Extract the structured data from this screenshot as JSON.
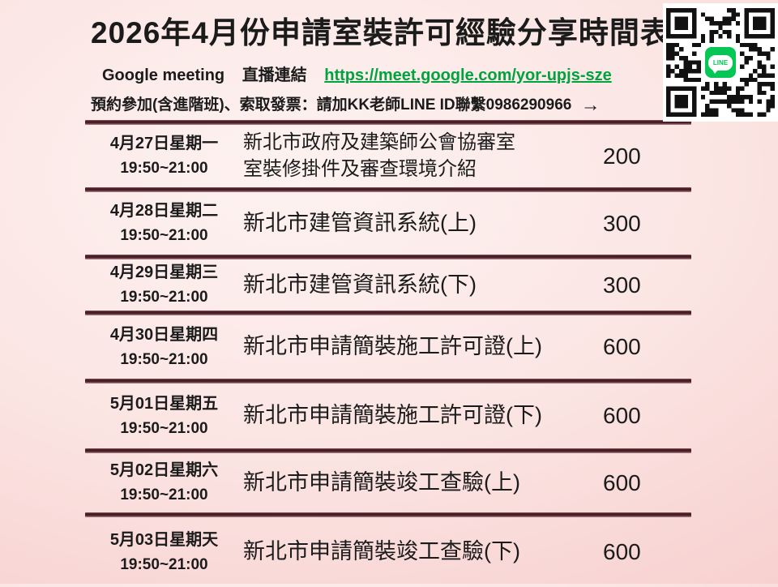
{
  "slide": {
    "title": "2026年4月份申請室裝許可經驗分享時間表",
    "meeting": {
      "label": "Google meeting",
      "live_label": "直播連結",
      "link": "https://meet.google.com/yor-upjs-sze"
    },
    "booking_line": "預約參加(含進階班)、索取發票：請加KK老師LINE ID聯繫0986290966",
    "arrow": "→",
    "qr": {
      "icon_label": "LINE"
    },
    "colors": {
      "link_green": "#00a33e",
      "line_green": "#06C755",
      "separator_dark": "#4f2228",
      "background_pink": "#f7cfce"
    }
  },
  "schedule": {
    "rows": [
      {
        "date": "4月27日星期一",
        "time": "19:50~21:00",
        "title1": "新北市政府及建築師公會協審室",
        "title2": "室裝修掛件及審查環境介紹",
        "price": "200"
      },
      {
        "date": "4月28日星期二",
        "time": "19:50~21:00",
        "title1": "新北市建管資訊系統(上)",
        "title2": "",
        "price": "300"
      },
      {
        "date": "4月29日星期三",
        "time": "19:50~21:00",
        "title1": "新北市建管資訊系統(下)",
        "title2": "",
        "price": "300"
      },
      {
        "date": "4月30日星期四",
        "time": "19:50~21:00",
        "title1": "新北市申請簡裝施工許可證(上)",
        "title2": "",
        "price": "600"
      },
      {
        "date": "5月01日星期五",
        "time": "19:50~21:00",
        "title1": "新北市申請簡裝施工許可證(下)",
        "title2": "",
        "price": "600"
      },
      {
        "date": "5月02日星期六",
        "time": "19:50~21:00",
        "title1": "新北市申請簡裝竣工查驗(上)",
        "title2": "",
        "price": "600"
      },
      {
        "date": "5月03日星期天",
        "time": "19:50~21:00",
        "title1": "新北市申請簡裝竣工查驗(下)",
        "title2": "",
        "price": "600"
      }
    ]
  }
}
